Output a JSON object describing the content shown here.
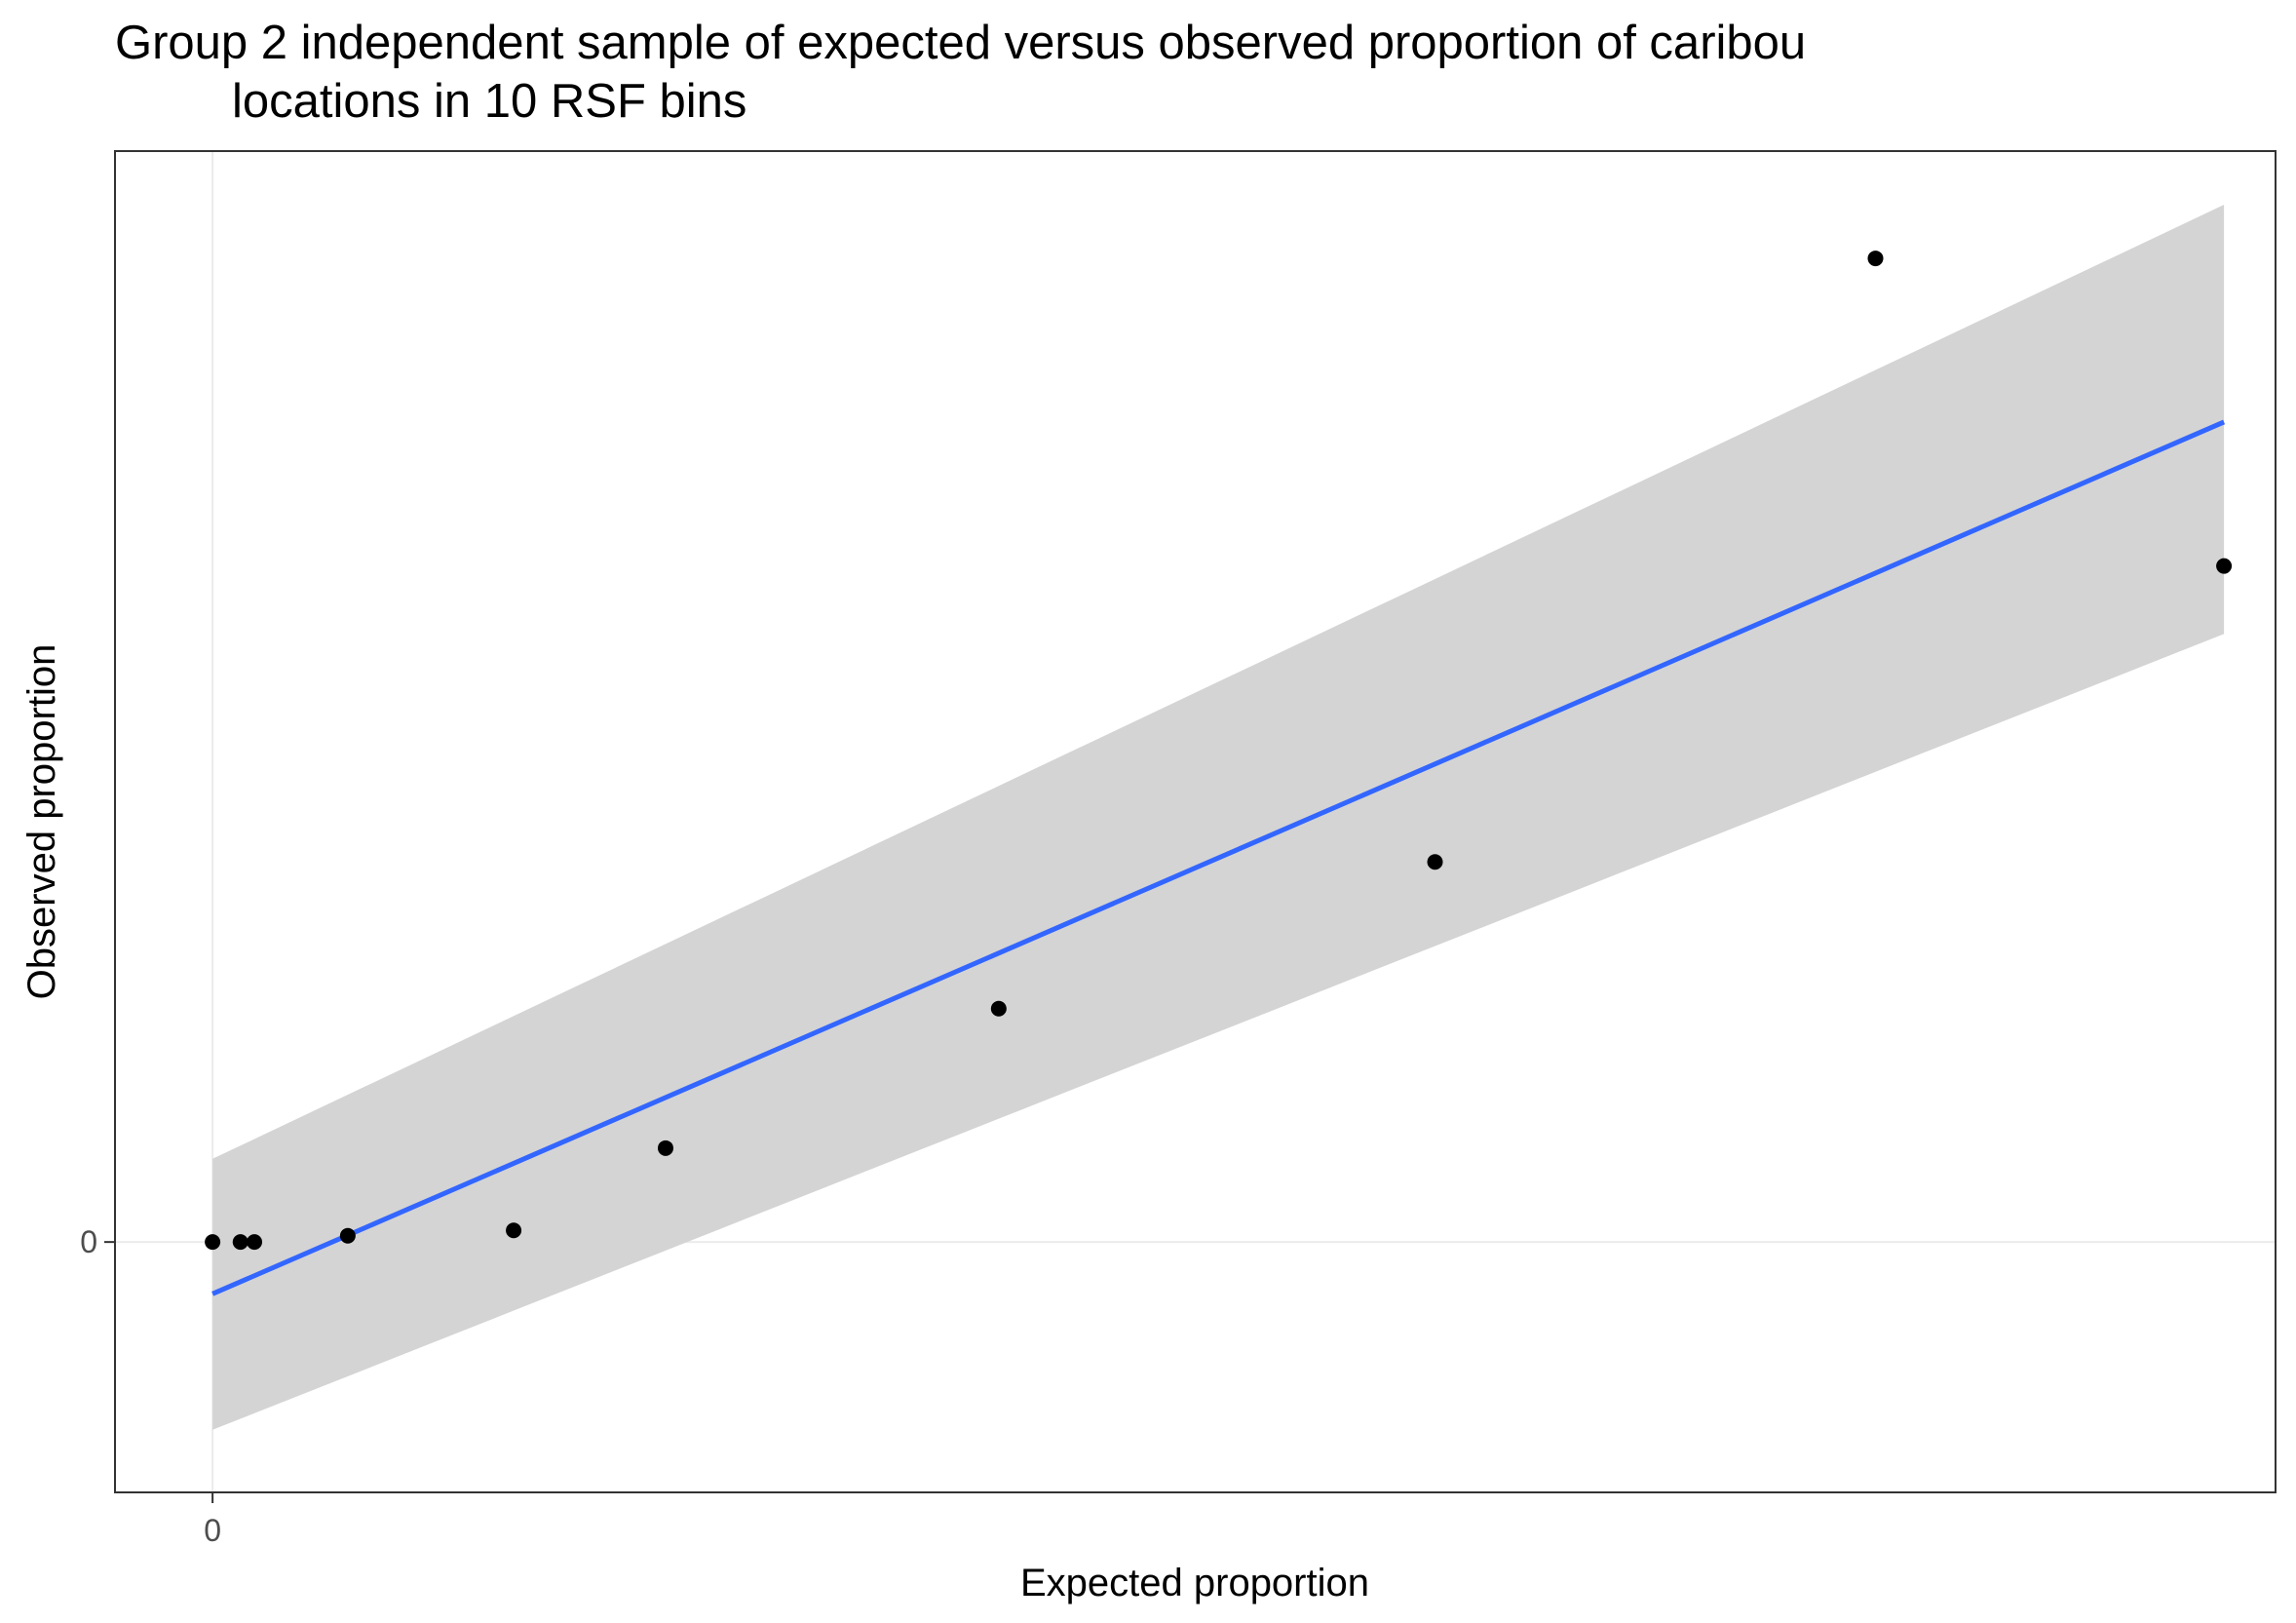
{
  "chart_data": {
    "type": "scatter",
    "title_line1": "Group 2 independent sample of expected versus observed proportion of caribou",
    "title_line2": "locations in 10 RSF bins",
    "xlabel": "Expected proportion",
    "ylabel": "Observed proportion",
    "x_ticks": [
      "0"
    ],
    "y_ticks": [
      "0"
    ],
    "xlim": [
      -0.007,
      0.148
    ],
    "ylim": [
      -0.28,
      1.22
    ],
    "points": [
      {
        "x": 0.0,
        "y": 0.0
      },
      {
        "x": 0.002,
        "y": 0.0
      },
      {
        "x": 0.003,
        "y": 0.0
      },
      {
        "x": 0.0097,
        "y": 0.007
      },
      {
        "x": 0.0216,
        "y": 0.013
      },
      {
        "x": 0.0325,
        "y": 0.105
      },
      {
        "x": 0.0564,
        "y": 0.261
      },
      {
        "x": 0.0877,
        "y": 0.425
      },
      {
        "x": 0.1193,
        "y": 1.1
      },
      {
        "x": 0.1443,
        "y": 0.756
      }
    ],
    "fit": {
      "method": "linear",
      "x": [
        0.0,
        0.1443
      ],
      "y": [
        -0.058,
        0.917
      ],
      "ci_lower": [
        -0.21,
        0.68
      ],
      "ci_upper": [
        0.093,
        1.16
      ],
      "line_color": "#3366FF",
      "ribbon_color": "#D4D4D4"
    },
    "grid": true,
    "point_color": "#000000"
  }
}
